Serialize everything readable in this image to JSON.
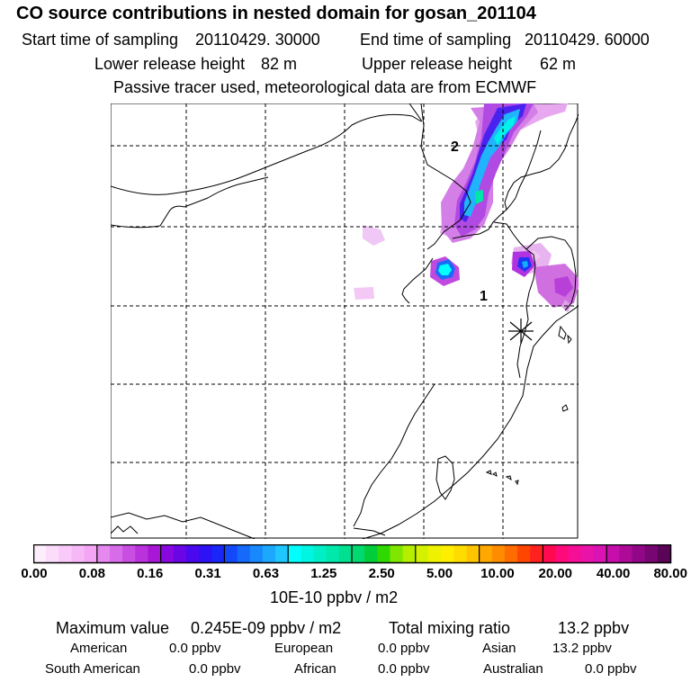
{
  "title": "CO  source contributions in nested domain for gosan_201104",
  "sampling": {
    "start_label": "Start time of sampling",
    "start_value": "20110429. 30000",
    "end_label": "End time of sampling",
    "end_value": "20110429. 60000"
  },
  "release": {
    "lower_label": "Lower release height",
    "lower_value": "82 m",
    "upper_label": "Upper release height",
    "upper_value": "62 m"
  },
  "note": "Passive tracer used, meteorological data are from ECMWF",
  "map": {
    "markers": [
      "1",
      "2"
    ],
    "station_icon": "asterisk-station-icon"
  },
  "colorbar": {
    "ticks": [
      "0.00",
      "0.08",
      "0.16",
      "0.31",
      "0.63",
      "1.25",
      "2.50",
      "5.00",
      "10.00",
      "20.00",
      "40.00",
      "80.00"
    ],
    "unit": "10E-10 ppbv / m2",
    "colors": [
      [
        "#fdeefd",
        "#fbdcfb",
        "#f9caf9",
        "#f7b8f7",
        "#f4a6f4"
      ],
      [
        "#e589ee",
        "#d86ce8",
        "#c94fe2",
        "#b932dc",
        "#a817d6"
      ],
      [
        "#8a08e0",
        "#6a06e6",
        "#4a08ee",
        "#2c12f4",
        "#1a26f8"
      ],
      [
        "#1449fa",
        "#1569fb",
        "#1888fc",
        "#1ca8fd",
        "#20c6fe"
      ],
      [
        "#00ffff",
        "#00f6e2",
        "#00efc6",
        "#00e8aa",
        "#00e08e"
      ],
      [
        "#00d870",
        "#00cd3a",
        "#2fd800",
        "#7fe600",
        "#b6ee00"
      ],
      [
        "#d4f200",
        "#eef200",
        "#ffee00",
        "#ffdc00",
        "#ffc400"
      ],
      [
        "#ffa800",
        "#ff8c00",
        "#ff6c00",
        "#ff4600",
        "#ff2020"
      ],
      [
        "#ff0a50",
        "#ff0a7a",
        "#f50e96",
        "#e813a8",
        "#d913b4"
      ],
      [
        "#c60eaa",
        "#ad0a98",
        "#920786",
        "#770672",
        "#5a0457"
      ]
    ]
  },
  "summary": {
    "max_label": "Maximum value",
    "max_value": "0.245E-09 ppbv / m2",
    "total_label": "Total mixing ratio",
    "total_value": "13.2 ppbv",
    "regions": [
      {
        "name": "American",
        "value": "0.0 ppbv"
      },
      {
        "name": "European",
        "value": "0.0 ppbv"
      },
      {
        "name": "Asian",
        "value": "13.2 ppbv"
      },
      {
        "name": "South American",
        "value": "0.0 ppbv"
      },
      {
        "name": "African",
        "value": "0.0 ppbv"
      },
      {
        "name": "Australian",
        "value": "0.0 ppbv"
      }
    ]
  }
}
